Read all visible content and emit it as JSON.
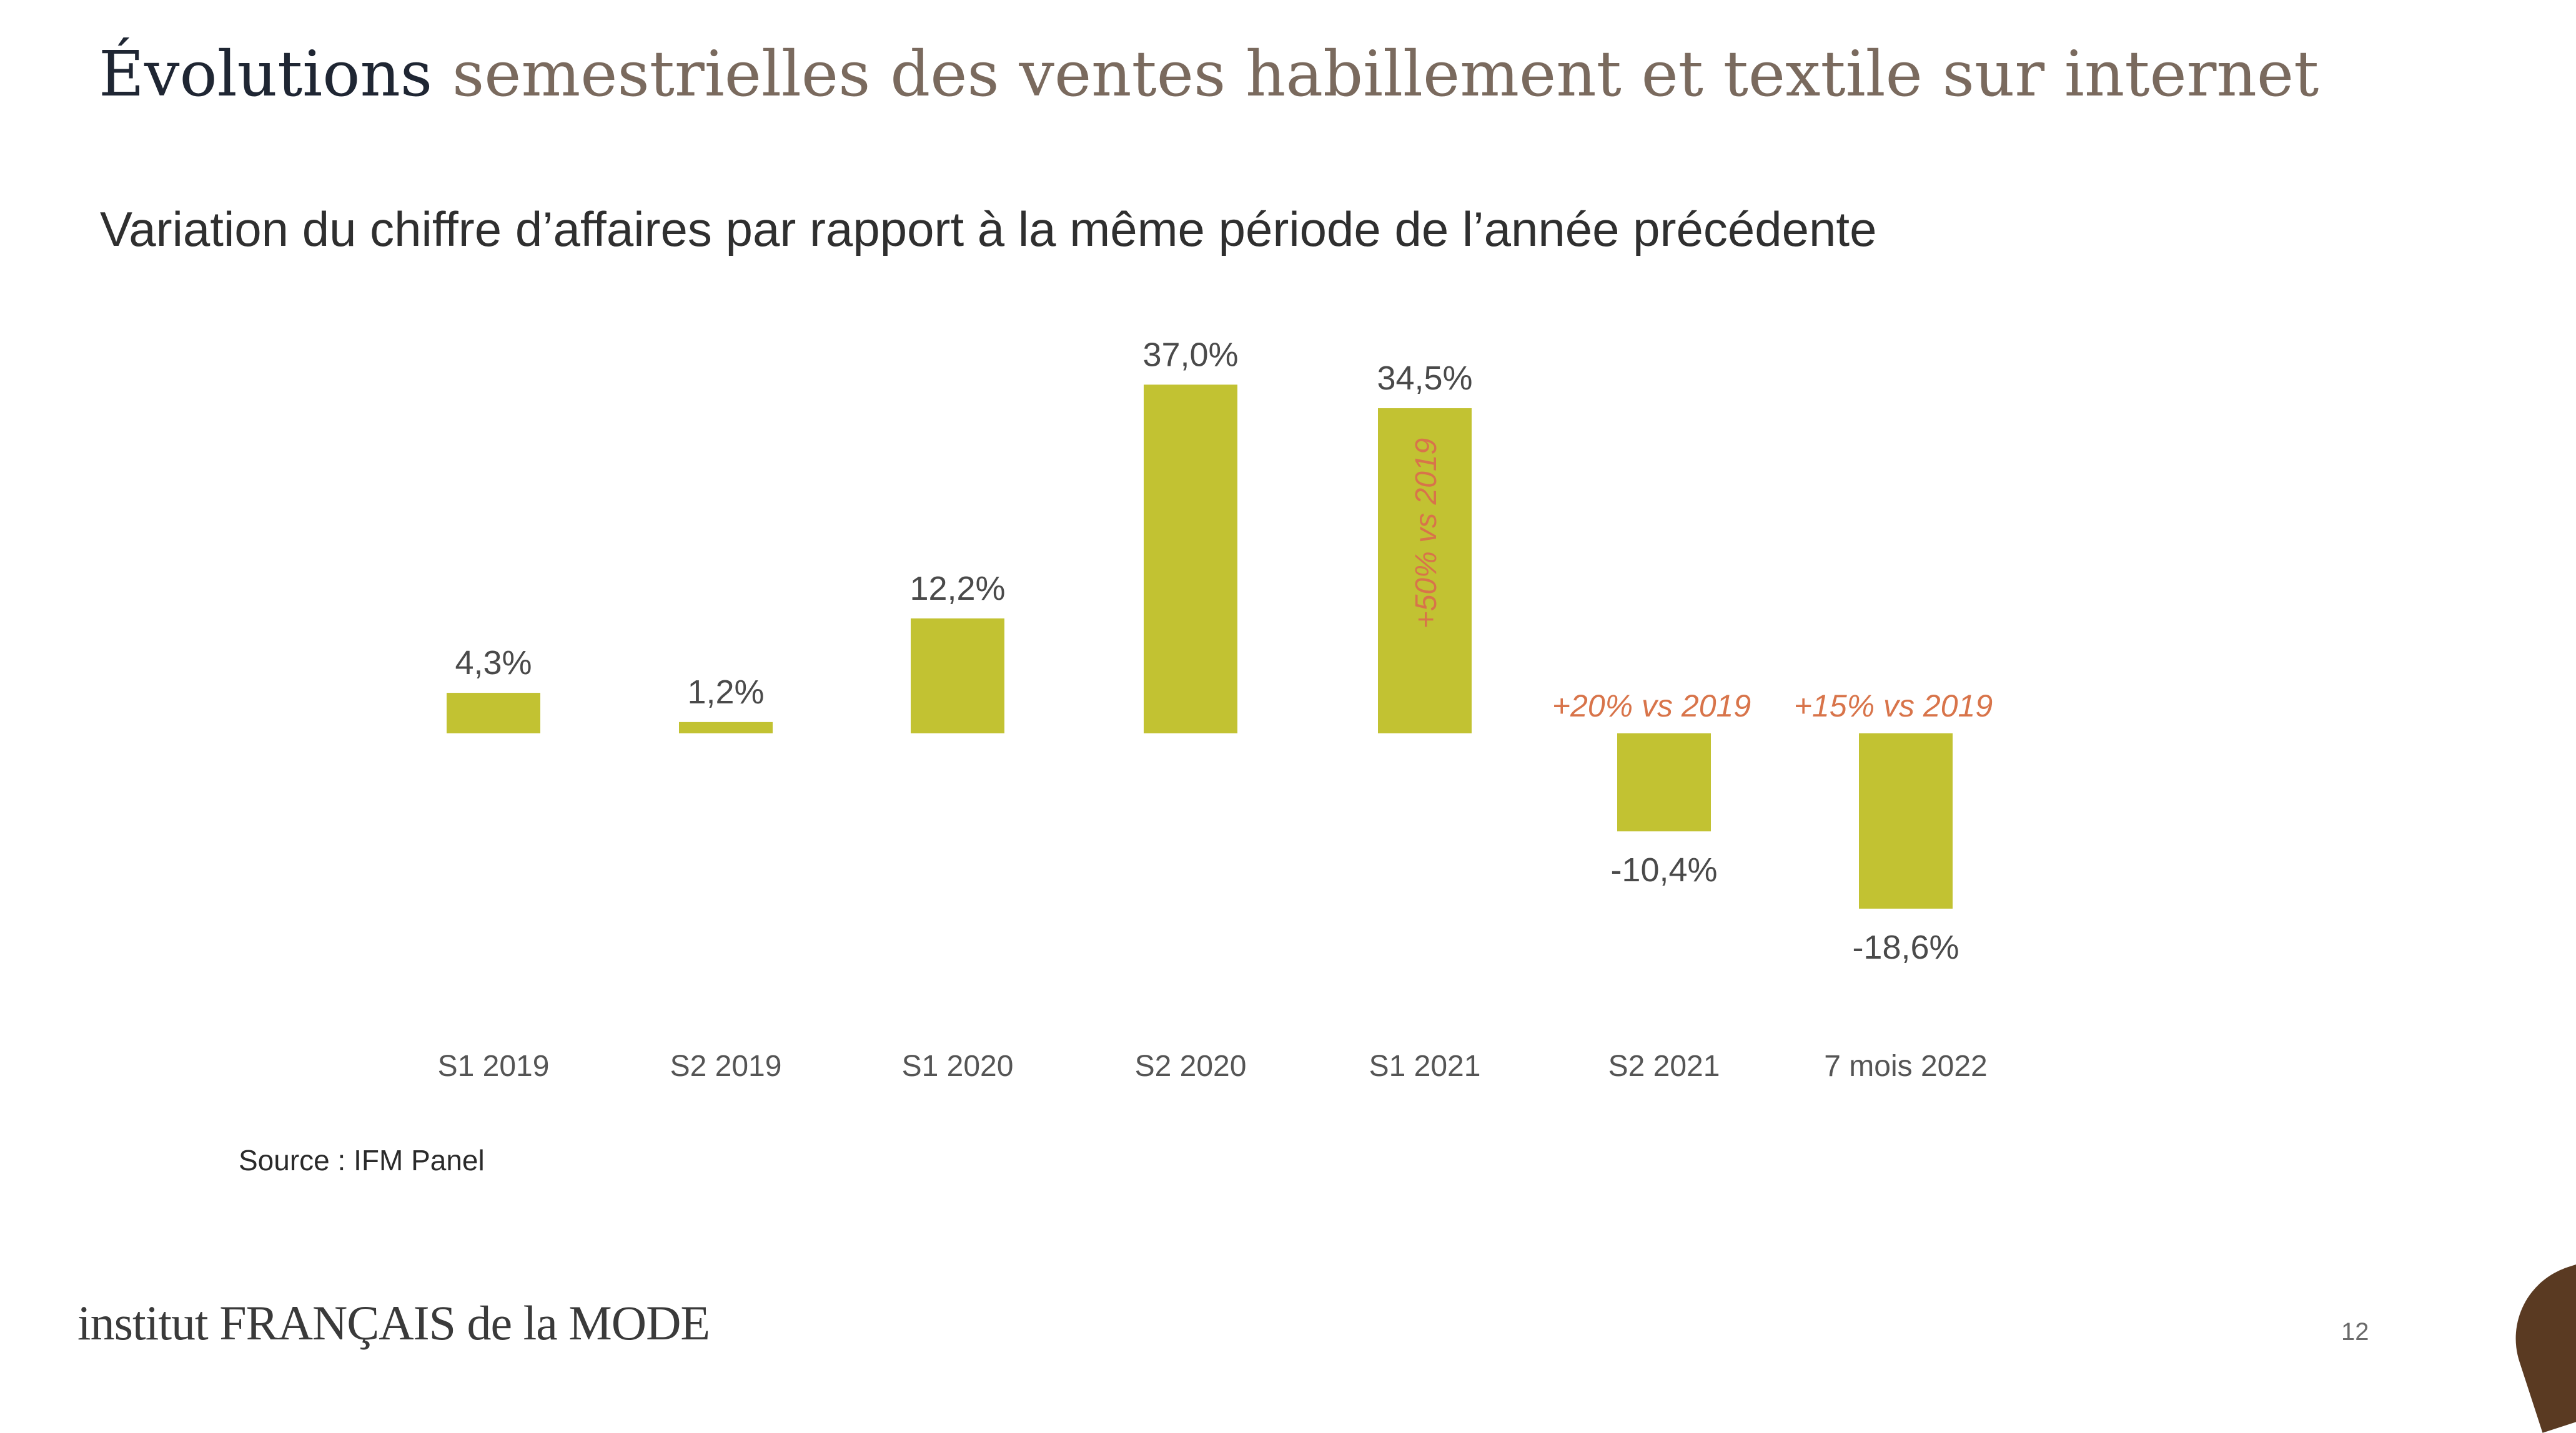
{
  "header": {
    "title_first": "Évolutions",
    "title_rest": " semestrielles des ventes habillement et textile sur internet",
    "subtitle": "Variation du chiffre d’affaires par rapport à la même période de l’année précédente"
  },
  "chart_data": {
    "type": "bar",
    "title": "Évolutions semestrielles des ventes habillement et textile sur internet",
    "subtitle": "Variation du chiffre d’affaires par rapport à la même période de l’année précédente",
    "categories": [
      "S1 2019",
      "S2 2019",
      "S1 2020",
      "S2 2020",
      "S1 2021",
      "S2 2021",
      "7 mois 2022"
    ],
    "values": [
      4.3,
      1.2,
      12.2,
      37.0,
      34.5,
      -10.4,
      -18.6
    ],
    "value_labels": [
      "4,3%",
      "1,2%",
      "12,2%",
      "37,0%",
      "34,5%",
      "-10,4%",
      "-18,6%"
    ],
    "annotations": [
      {
        "category": "S1 2021",
        "text": "+50% vs 2019",
        "placement": "inside-bar-vertical"
      },
      {
        "category": "S2 2021",
        "text": "+20% vs 2019",
        "placement": "above-bar"
      },
      {
        "category": "7 mois 2022",
        "text": "+15% vs 2019",
        "placement": "above-bar"
      }
    ],
    "xlabel": "",
    "ylabel": "",
    "ylim": [
      -20,
      40
    ],
    "grid": false,
    "legend": "none",
    "colors": {
      "bar": "#c2c232",
      "annotation": "#d8744a",
      "label": "#4a4a4a",
      "tick": "#555555"
    }
  },
  "footer": {
    "source": "Source : IFM Panel",
    "logo_text": "institut FRANÇAIS de la MODE",
    "page_number": "12"
  }
}
